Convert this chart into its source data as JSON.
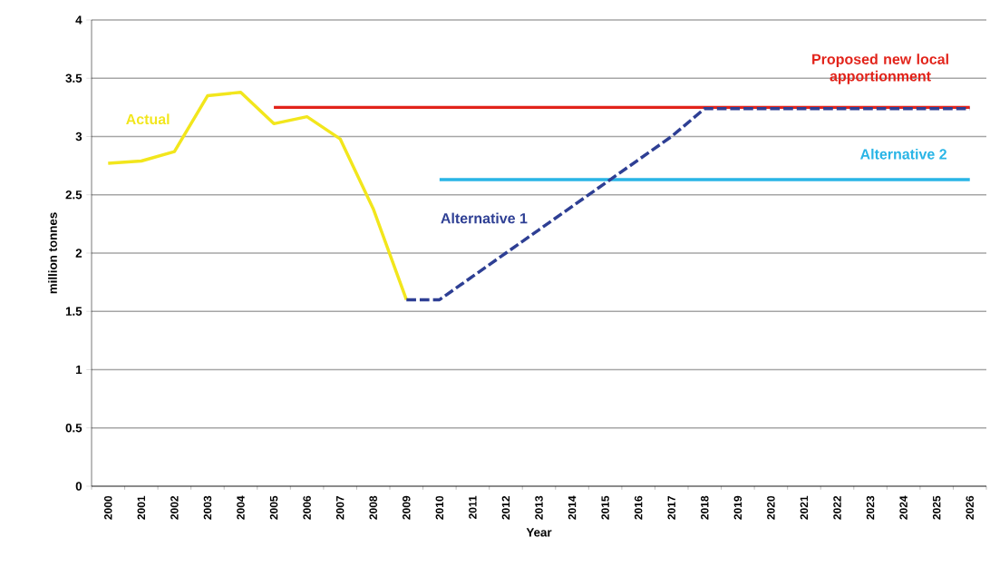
{
  "chart_data": {
    "type": "line",
    "xlabel": "Year",
    "ylabel": "million tonnes",
    "categories": [
      "2000",
      "2001",
      "2002",
      "2003",
      "2004",
      "2005",
      "2006",
      "2007",
      "2008",
      "2009",
      "2010",
      "2011",
      "2012",
      "2013",
      "2014",
      "2015",
      "2016",
      "2017",
      "2018",
      "2019",
      "2020",
      "2021",
      "2022",
      "2023",
      "2024",
      "2025",
      "2026"
    ],
    "series": [
      {
        "name": "Actual",
        "color": "#f2e61c",
        "line_style": "solid",
        "values": [
          2.77,
          2.79,
          2.87,
          3.35,
          3.38,
          3.11,
          3.17,
          2.98,
          2.38,
          1.6,
          null,
          null,
          null,
          null,
          null,
          null,
          null,
          null,
          null,
          null,
          null,
          null,
          null,
          null,
          null,
          null,
          null
        ]
      },
      {
        "name": "Proposed new local apportionment",
        "color": "#e2231a",
        "line_style": "solid",
        "values": [
          null,
          null,
          null,
          null,
          null,
          3.25,
          3.25,
          3.25,
          3.25,
          3.25,
          3.25,
          3.25,
          3.25,
          3.25,
          3.25,
          3.25,
          3.25,
          3.25,
          3.25,
          3.25,
          3.25,
          3.25,
          3.25,
          3.25,
          3.25,
          3.25,
          3.25
        ]
      },
      {
        "name": "Alternative 2",
        "color": "#29b5e6",
        "line_style": "solid",
        "values": [
          null,
          null,
          null,
          null,
          null,
          null,
          null,
          null,
          null,
          null,
          2.63,
          2.63,
          2.63,
          2.63,
          2.63,
          2.63,
          2.63,
          2.63,
          2.63,
          2.63,
          2.63,
          2.63,
          2.63,
          2.63,
          2.63,
          2.63,
          2.63
        ]
      },
      {
        "name": "Alternative 1",
        "color": "#2e3f94",
        "line_style": "dashed",
        "values": [
          null,
          null,
          null,
          null,
          null,
          null,
          null,
          null,
          null,
          1.6,
          1.6,
          1.8,
          2.0,
          2.2,
          2.4,
          2.6,
          2.8,
          3.0,
          3.24,
          3.24,
          3.24,
          3.24,
          3.24,
          3.24,
          3.24,
          3.24,
          3.24
        ]
      }
    ],
    "ylim": [
      0,
      4
    ],
    "yticks": [
      0,
      0.5,
      1,
      1.5,
      2,
      2.5,
      3,
      3.5,
      4
    ],
    "grid": "y",
    "marker": "none"
  }
}
